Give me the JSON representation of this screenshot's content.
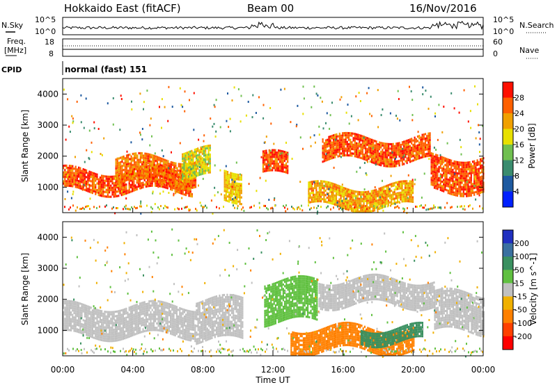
{
  "header": {
    "radar_name": "Hokkaido East (fitACF)",
    "beam": "Beam 00",
    "date": "16/Nov/2016"
  },
  "noise_panel": {
    "left_label": "N.Sky",
    "right_label": "N.Search",
    "left_ticks": [
      "10^5",
      "10^0"
    ],
    "right_ticks": [
      "10^5",
      "10^0"
    ]
  },
  "freq_panel": {
    "left_label_1": "Freq.",
    "left_label_2": "[MHz]",
    "right_label": "Nave",
    "left_ticks": [
      "18",
      "8"
    ],
    "right_ticks": [
      "60",
      "0"
    ]
  },
  "cpid_panel": {
    "label": "CPID",
    "mode_text": "normal (fast) 151"
  },
  "chart_data": [
    {
      "type": "heatmap",
      "panel": "power",
      "ylabel": "Slant Range [km]",
      "y_ticks": [
        "1000",
        "2000",
        "3000",
        "4000"
      ],
      "ylim": [
        180,
        4500
      ],
      "xlim_hours": [
        0,
        24
      ],
      "colorbar": {
        "label": "Power [dB]",
        "ticks": [
          "4",
          "8",
          "12",
          "16",
          "20",
          "24",
          "28"
        ],
        "range": [
          0,
          32
        ],
        "colors": [
          "#0020ff",
          "#1e5aa0",
          "#3a8c6e",
          "#70c050",
          "#e8e000",
          "#f0a000",
          "#ff6000",
          "#ff1000"
        ]
      },
      "bands": [
        {
          "t0": 0.0,
          "t1": 7.4,
          "r0": 850,
          "r1": 1550,
          "value": 27
        },
        {
          "t0": 3.0,
          "t1": 7.6,
          "r0": 1100,
          "r1": 1950,
          "value": 25
        },
        {
          "t0": 6.8,
          "t1": 8.4,
          "r0": 1300,
          "r1": 2200,
          "value": 18
        },
        {
          "t0": 9.2,
          "t1": 10.2,
          "r0": 600,
          "r1": 1600,
          "value": 20
        },
        {
          "t0": 11.4,
          "t1": 12.8,
          "r0": 1400,
          "r1": 2050,
          "value": 27
        },
        {
          "t0": 14.8,
          "t1": 21.0,
          "r0": 1850,
          "r1": 2600,
          "value": 27
        },
        {
          "t0": 21.0,
          "t1": 24.0,
          "r0": 900,
          "r1": 2000,
          "value": 27
        },
        {
          "t0": 14.0,
          "t1": 20.0,
          "r0": 350,
          "r1": 1050,
          "value": 22
        }
      ]
    },
    {
      "type": "heatmap",
      "panel": "velocity",
      "ylabel": "Slant Range [km]",
      "y_ticks": [
        "1000",
        "2000",
        "3000",
        "4000"
      ],
      "ylim": [
        180,
        4500
      ],
      "xlim_hours": [
        0,
        24
      ],
      "x_ticks": [
        "00:00",
        "04:00",
        "08:00",
        "12:00",
        "16:00",
        "20:00",
        "00:00"
      ],
      "xlabel": "Time UT",
      "colorbar": {
        "label": "Velocity [m s^-1]",
        "ticks": [
          "200",
          "100",
          "50",
          "15",
          "-15",
          "-50",
          "-100",
          "-200"
        ],
        "colors": [
          "#2030c0",
          "#3a70a0",
          "#3a9060",
          "#60c040",
          "#c0c0c0",
          "#f0b000",
          "#ff8000",
          "#ff4000",
          "#ff0000"
        ]
      },
      "bands": [
        {
          "t0": 0.0,
          "t1": 7.6,
          "r0": 850,
          "r1": 1800,
          "value": 0
        },
        {
          "t0": 7.6,
          "t1": 10.3,
          "r0": 700,
          "r1": 2000,
          "value": 0
        },
        {
          "t0": 11.5,
          "t1": 14.5,
          "r0": 1300,
          "r1": 2600,
          "value": 30
        },
        {
          "t0": 14.6,
          "t1": 21.2,
          "r0": 1850,
          "r1": 2650,
          "value": 0
        },
        {
          "t0": 21.2,
          "t1": 24.0,
          "r0": 950,
          "r1": 2200,
          "value": 0
        },
        {
          "t0": 13.0,
          "t1": 20.0,
          "r0": 350,
          "r1": 1100,
          "value": -60
        },
        {
          "t0": 17.0,
          "t1": 20.5,
          "r0": 600,
          "r1": 1100,
          "value": 80
        }
      ]
    }
  ]
}
